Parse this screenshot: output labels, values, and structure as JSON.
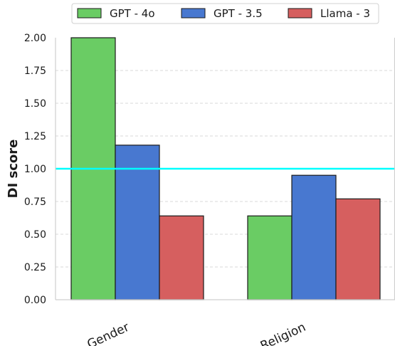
{
  "chart_data": {
    "type": "bar",
    "categories": [
      "Gender",
      "Religion"
    ],
    "series": [
      {
        "name": "GPT - 4o",
        "color": "#6acc64",
        "values": [
          2.0,
          0.64
        ]
      },
      {
        "name": "GPT - 3.5",
        "color": "#4878d0",
        "values": [
          1.18,
          0.95
        ]
      },
      {
        "name": "Llama - 3",
        "color": "#d65f5f",
        "values": [
          0.64,
          0.77
        ]
      }
    ],
    "yticks": [
      "0.00",
      "0.25",
      "0.50",
      "0.75",
      "1.00",
      "1.25",
      "1.50",
      "1.75",
      "2.00"
    ],
    "ylabel": "DI score",
    "ylim": [
      0,
      2.0
    ],
    "reference_line": {
      "y": 1.0,
      "color": "#00ffff"
    },
    "grid": "horizontal dashed",
    "legend_position": "top"
  }
}
